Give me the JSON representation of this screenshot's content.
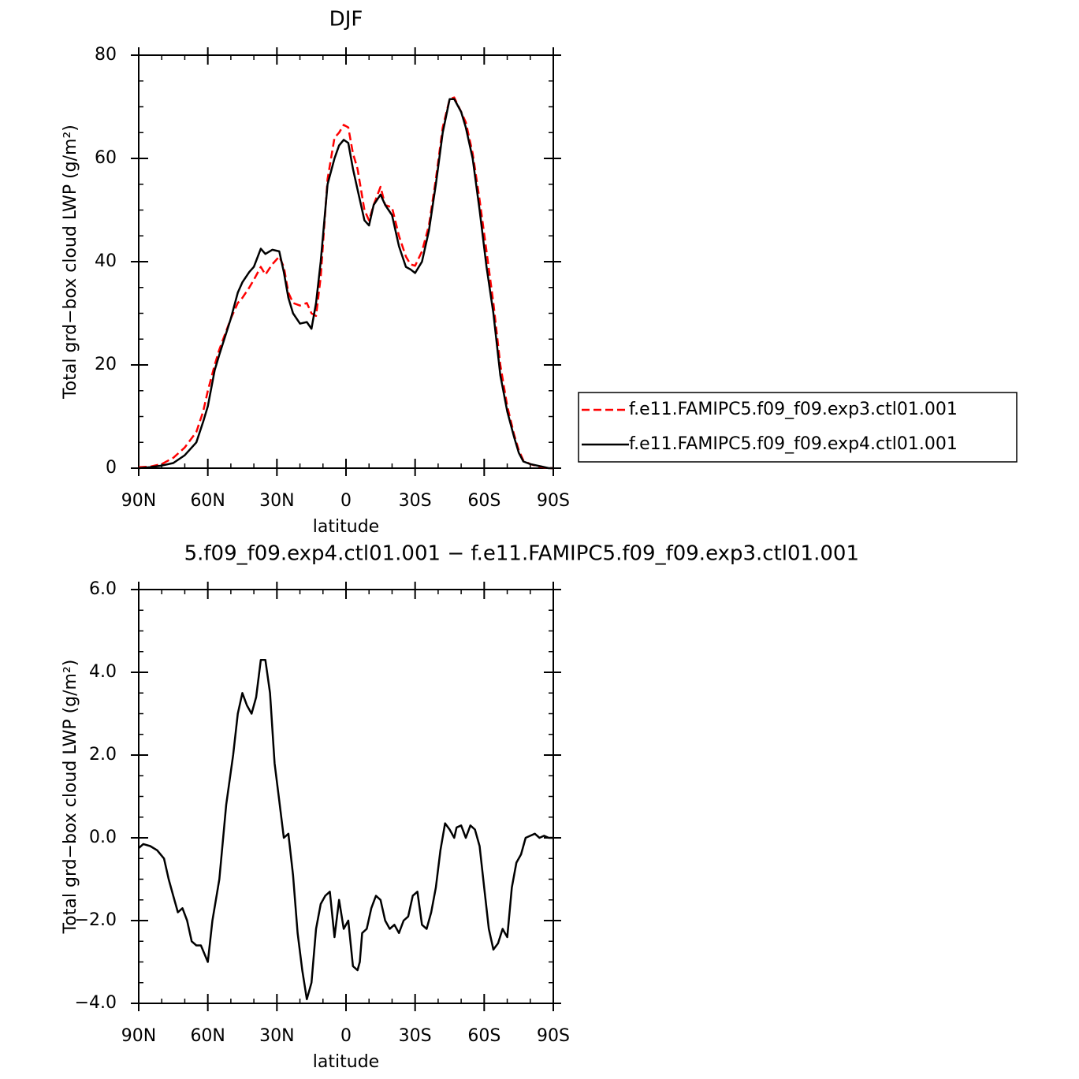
{
  "chart_data": [
    {
      "type": "line",
      "title": "DJF",
      "xlabel": "latitude",
      "ylabel": "Total grd−box cloud LWP (g/m²)",
      "x": [
        90,
        85,
        80,
        75,
        70,
        65,
        62,
        60,
        57,
        55,
        50,
        47,
        45,
        42,
        40,
        37,
        35,
        32,
        29,
        27,
        25,
        23,
        20,
        17,
        15,
        13,
        11,
        8,
        5,
        3,
        1,
        -1,
        -3,
        -5,
        -8,
        -10,
        -12,
        -15,
        -17,
        -20,
        -23,
        -26,
        -28,
        -30,
        -33,
        -36,
        -39,
        -42,
        -45,
        -47,
        -50,
        -52,
        -55,
        -58,
        -61,
        -64,
        -67,
        -70,
        -73,
        -75,
        -77,
        -80,
        -83,
        -85,
        -88,
        -90
      ],
      "series": [
        {
          "name": "f.e11.FAMIPC5.f09_f09.exp3.ctl01.001",
          "color": "#ff0000",
          "dash": true,
          "values": [
            0.2,
            0.3,
            0.8,
            2,
            4,
            7,
            11,
            15,
            20,
            23,
            29,
            32,
            33,
            35,
            36.5,
            39,
            37.5,
            39.5,
            41,
            39,
            34,
            32,
            31.5,
            32,
            30,
            29.5,
            37,
            56,
            64,
            65,
            66.5,
            66,
            61,
            58,
            50,
            48,
            51,
            54.5,
            51,
            50.5,
            45,
            41,
            39.5,
            39.2,
            42,
            47,
            56,
            66,
            71.5,
            71.8,
            69,
            67,
            61,
            52,
            42,
            32,
            20,
            12,
            6.5,
            3.5,
            1.5,
            0.8,
            0.4,
            0.2,
            0,
            0
          ]
        },
        {
          "name": "f.e11.FAMIPC5.f09_f09.exp4.ctl01.001",
          "color": "#000000",
          "dash": false,
          "values": [
            0,
            0.2,
            0.5,
            1,
            2.5,
            5,
            9,
            12,
            19,
            22,
            29,
            34,
            36,
            38,
            39,
            42.5,
            41.5,
            42.3,
            42,
            38,
            33,
            30,
            28,
            28.3,
            27,
            32,
            40,
            55,
            60,
            62.5,
            63.6,
            63,
            58,
            54,
            48,
            47,
            51,
            53,
            51,
            49,
            43,
            39,
            38.5,
            37.8,
            40,
            46,
            55,
            65,
            71.5,
            71.5,
            69,
            66,
            60,
            50,
            39,
            30,
            18,
            11,
            6,
            3,
            1.3,
            0.8,
            0.5,
            0.3,
            0,
            0
          ]
        }
      ],
      "xlim": [
        90,
        -90
      ],
      "xticks": [
        {
          "value": 90,
          "label": "90N"
        },
        {
          "value": 60,
          "label": "60N"
        },
        {
          "value": 30,
          "label": "30N"
        },
        0,
        {
          "value": -30,
          "label": "30S"
        },
        {
          "value": -60,
          "label": "60S"
        },
        {
          "value": -90,
          "label": "90S"
        }
      ],
      "ylim": [
        0,
        80
      ],
      "yticks": [
        0,
        20,
        40,
        60,
        80
      ],
      "legend": "right"
    },
    {
      "type": "line",
      "title": "5.f09_f09.exp4.ctl01.001 − f.e11.FAMIPC5.f09_f09.exp3.ctl01.001",
      "xlabel": "latitude",
      "ylabel": "Total grd−box cloud LWP (g/m²)",
      "x": [
        90,
        88,
        85,
        82,
        79,
        77,
        75,
        73,
        71,
        69,
        67,
        65,
        63,
        60,
        58,
        55,
        52,
        49,
        47,
        45,
        43,
        41,
        39,
        37,
        35,
        33,
        31,
        29,
        27,
        25,
        23,
        21,
        19,
        17,
        15,
        13,
        11,
        9,
        7,
        5,
        3,
        1,
        -1,
        -3,
        -5,
        -6,
        -7,
        -9,
        -11,
        -13,
        -15,
        -17,
        -19,
        -21,
        -23,
        -25,
        -27,
        -29,
        -31,
        -33,
        -35,
        -37,
        -39,
        -41,
        -43,
        -45,
        -47,
        -48,
        -50,
        -52,
        -54,
        -56,
        -58,
        -60,
        -62,
        -64,
        -66,
        -68,
        -69,
        -70,
        -72,
        -74,
        -76,
        -78,
        -80,
        -82,
        -84,
        -86,
        -88,
        -90
      ],
      "series": [
        {
          "color": "#000000",
          "dash": false,
          "values": [
            -0.25,
            -0.15,
            -0.2,
            -0.3,
            -0.5,
            -1,
            -1.4,
            -1.8,
            -1.7,
            -2,
            -2.5,
            -2.6,
            -2.6,
            -3,
            -2,
            -1,
            0.8,
            2,
            3.0,
            3.5,
            3.2,
            3.0,
            3.4,
            4.3,
            4.3,
            3.5,
            1.8,
            0.9,
            0,
            0.1,
            -0.9,
            -2.3,
            -3.2,
            -3.9,
            -3.5,
            -2.2,
            -1.6,
            -1.4,
            -1.3,
            -2.4,
            -1.5,
            -2.2,
            -2.0,
            -3.1,
            -3.2,
            -3.0,
            -2.3,
            -2.2,
            -1.7,
            -1.4,
            -1.5,
            -2.0,
            -2.2,
            -2.1,
            -2.3,
            -2.0,
            -1.9,
            -1.4,
            -1.3,
            -2.1,
            -2.2,
            -1.8,
            -1.2,
            -0.3,
            0.35,
            0.2,
            0,
            0.25,
            0.3,
            0,
            0.3,
            0.2,
            -0.2,
            -1.2,
            -2.2,
            -2.7,
            -2.55,
            -2.2,
            -2.3,
            -2.4,
            -1.2,
            -0.6,
            -0.4,
            0,
            0.05,
            0.1,
            0,
            0.05,
            0,
            0
          ]
        }
      ],
      "xlim": [
        90,
        -90
      ],
      "xticks": [
        {
          "value": 90,
          "label": "90N"
        },
        {
          "value": 60,
          "label": "60N"
        },
        {
          "value": 30,
          "label": "30N"
        },
        0,
        {
          "value": -30,
          "label": "30S"
        },
        {
          "value": -60,
          "label": "60S"
        },
        {
          "value": -90,
          "label": "90S"
        }
      ],
      "ylim": [
        -4,
        6
      ],
      "yticks": [
        {
          "value": -4,
          "label": "−4.0"
        },
        {
          "value": -2,
          "label": "−2.0"
        },
        {
          "value": 0,
          "label": "0.0"
        },
        {
          "value": 2,
          "label": "2.0"
        },
        {
          "value": 4,
          "label": "4.0"
        },
        {
          "value": 6,
          "label": "6.0"
        }
      ]
    }
  ]
}
